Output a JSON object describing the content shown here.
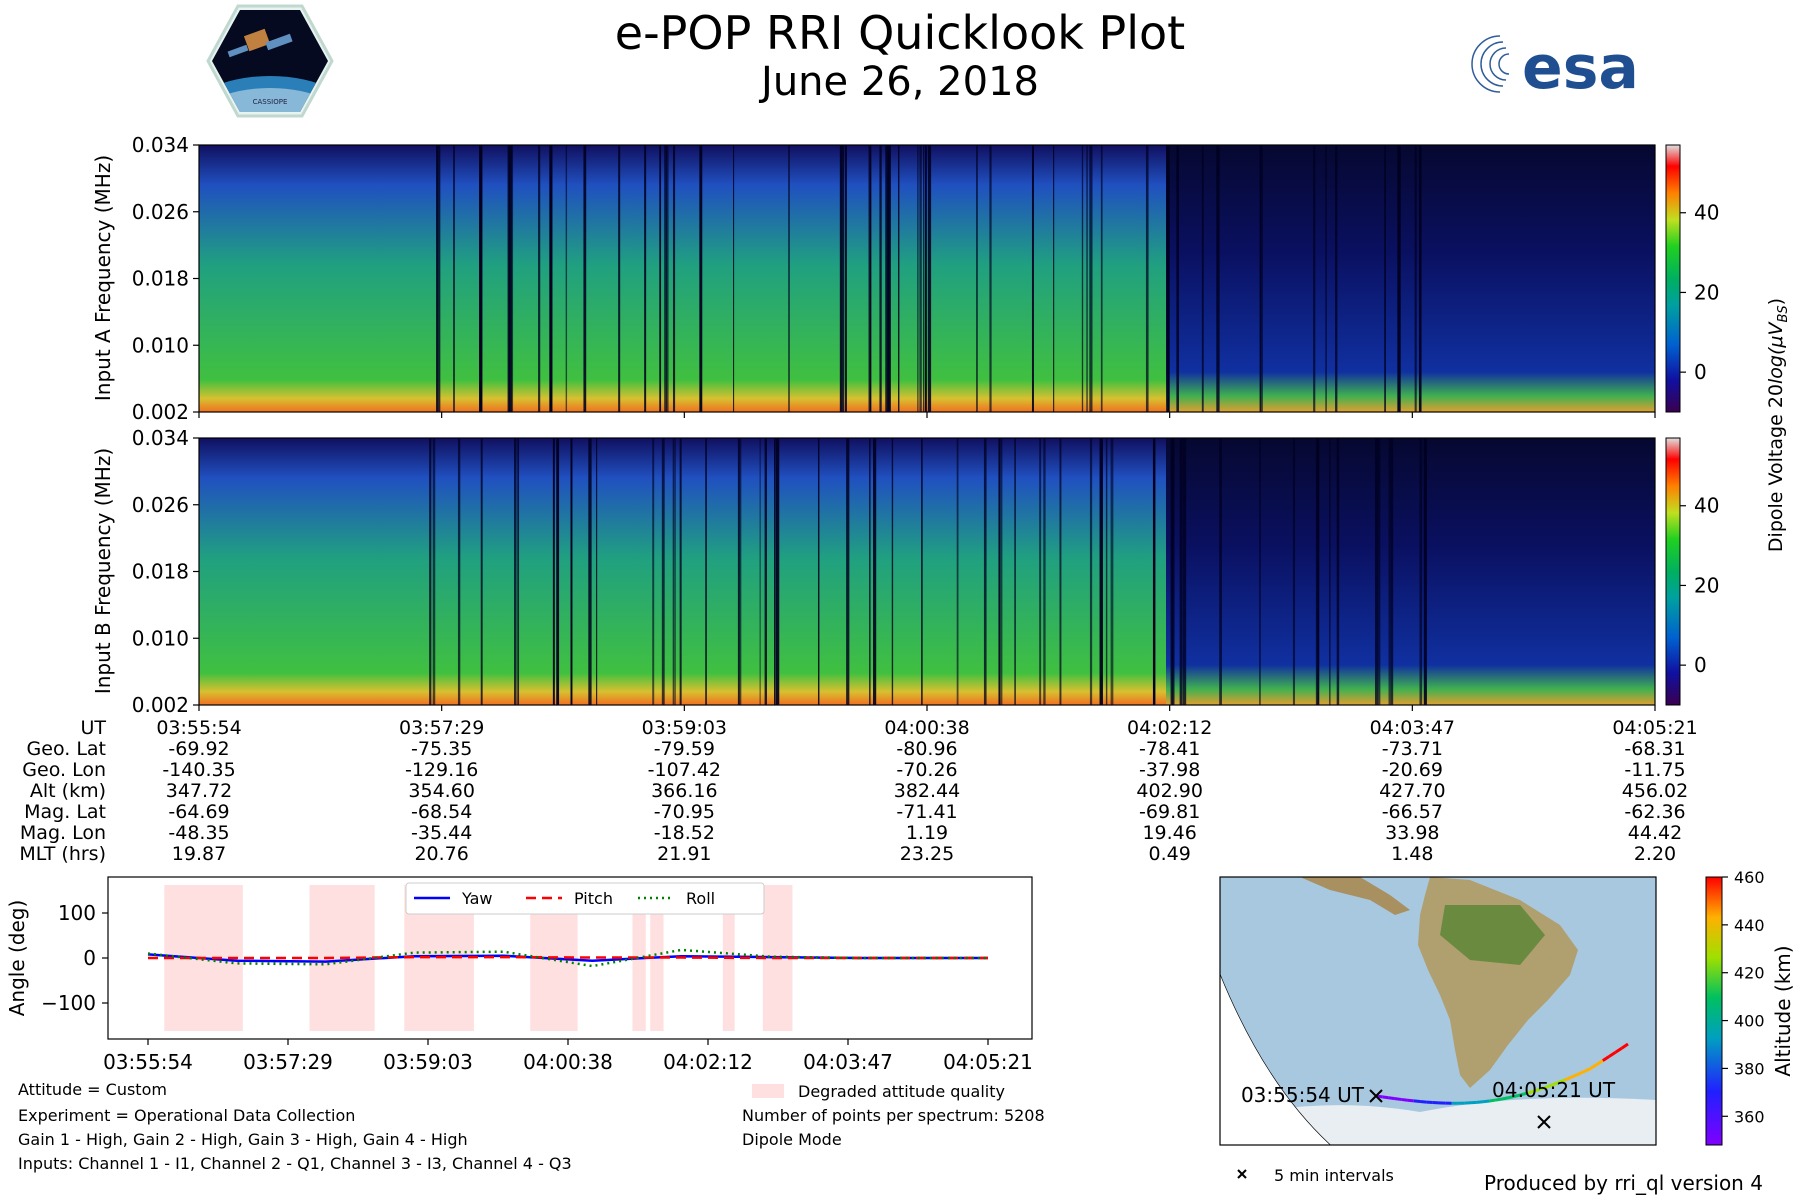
{
  "header": {
    "title": "e-POP RRI Quicklook Plot",
    "date": "June 26, 2018",
    "logo_left_text": "CASSIOPE",
    "logo_right_text": "esa"
  },
  "chart_data": [
    {
      "type": "heatmap",
      "name": "Input A spectrogram",
      "ylabel": "Input A Frequency (MHz)",
      "yticks": [
        "0.002",
        "0.010",
        "0.018",
        "0.026",
        "0.034"
      ],
      "ylim": [
        0.002,
        0.034
      ],
      "xlim": [
        "03:55:54",
        "04:05:21"
      ],
      "description": "Dynamic spectrum, strongest emission near 0.004 MHz; quiet (dark) region after 04:02:12"
    },
    {
      "type": "heatmap",
      "name": "Input B spectrogram",
      "ylabel": "Input B Frequency (MHz)",
      "yticks": [
        "0.002",
        "0.010",
        "0.018",
        "0.026",
        "0.034"
      ],
      "ylim": [
        0.002,
        0.034
      ],
      "xlim": [
        "03:55:54",
        "04:05:21"
      ]
    },
    {
      "type": "table",
      "name": "Ephemeris",
      "row_labels": [
        "UT",
        "Geo. Lat",
        "Geo. Lon",
        "Alt (km)",
        "Mag. Lat",
        "Mag. Lon",
        "MLT (hrs)"
      ],
      "columns": [
        [
          "03:55:54",
          "-69.92",
          "-140.35",
          "347.72",
          "-64.69",
          "-48.35",
          "19.87"
        ],
        [
          "03:57:29",
          "-75.35",
          "-129.16",
          "354.60",
          "-68.54",
          "-35.44",
          "20.76"
        ],
        [
          "03:59:03",
          "-79.59",
          "-107.42",
          "366.16",
          "-70.95",
          "-18.52",
          "21.91"
        ],
        [
          "04:00:38",
          "-80.96",
          "-70.26",
          "382.44",
          "-71.41",
          "1.19",
          "23.25"
        ],
        [
          "04:02:12",
          "-78.41",
          "-37.98",
          "402.90",
          "-69.81",
          "19.46",
          "0.49"
        ],
        [
          "04:03:47",
          "-73.71",
          "-20.69",
          "427.70",
          "-66.57",
          "33.98",
          "1.48"
        ],
        [
          "04:05:21",
          "-68.31",
          "-11.75",
          "456.02",
          "-62.36",
          "44.42",
          "2.20"
        ]
      ]
    },
    {
      "type": "line",
      "name": "Attitude",
      "ylabel": "Angle (deg)",
      "yticks": [
        "100",
        "0",
        "−100"
      ],
      "ylim": [
        -180,
        180
      ],
      "xticks": [
        "03:55:54",
        "03:57:29",
        "03:59:03",
        "04:00:38",
        "04:02:12",
        "04:03:47",
        "04:05:21"
      ],
      "xlim_seconds": [
        0,
        567
      ],
      "legend": {
        "placement": "top-center"
      },
      "series": [
        {
          "name": "Yaw",
          "color": "#0000ff",
          "style": "solid",
          "x": [
            0,
            60,
            120,
            180,
            240,
            300,
            360,
            420,
            480,
            567
          ],
          "values": [
            8,
            -6,
            -8,
            4,
            5,
            -6,
            4,
            2,
            0,
            0
          ]
        },
        {
          "name": "Pitch",
          "color": "#ff0000",
          "style": "dashed",
          "x": [
            0,
            60,
            120,
            180,
            240,
            300,
            360,
            420,
            480,
            567
          ],
          "values": [
            0,
            0,
            0,
            2,
            2,
            1,
            1,
            0,
            0,
            0
          ]
        },
        {
          "name": "Roll",
          "color": "#008000",
          "style": "dotted",
          "x": [
            0,
            60,
            120,
            180,
            240,
            300,
            360,
            420,
            480,
            567
          ],
          "values": [
            10,
            -12,
            -14,
            12,
            14,
            -18,
            18,
            3,
            0,
            0
          ]
        }
      ],
      "shaded_regions_seconds": [
        [
          11,
          64
        ],
        [
          109,
          153
        ],
        [
          173,
          220
        ],
        [
          258,
          290
        ],
        [
          327,
          336
        ],
        [
          339,
          348
        ],
        [
          388,
          396
        ],
        [
          415,
          435
        ]
      ],
      "shaded_label": "Degraded attitude quality"
    },
    {
      "type": "scatter",
      "name": "Orbit track map",
      "colorbar_label": "Altitude (km)",
      "colorbar_ticks": [
        "460",
        "440",
        "420",
        "400",
        "380",
        "360"
      ],
      "colorbar_range": [
        348,
        460
      ],
      "start_label": "03:55:54 UT",
      "end_label": "04:05:21 UT",
      "marker_legend": "5 min intervals"
    }
  ],
  "colorbar_main": {
    "label": "Dipole Voltage 20log(μV_BS)",
    "label_main": "Dipole Voltage 20",
    "label_log": "log(",
    "label_mu": "μ",
    "label_v": "V",
    "label_sub": "BS",
    "label_close": ")",
    "ticks": [
      "40",
      "20",
      "0"
    ],
    "range": [
      -10,
      57
    ]
  },
  "info_left": [
    "Attitude = Custom",
    "Experiment = Operational Data Collection",
    "Gain 1 - High, Gain 2 - High, Gain 3 - High, Gain 4 - High",
    "Inputs: Channel 1 - I1, Channel 2 - Q1, Channel 3 - I3, Channel 4 - Q3"
  ],
  "info_right": {
    "legend_label": "Degraded attitude quality",
    "points": "Number of points per spectrum: 5208",
    "mode": "Dipole Mode"
  },
  "footer": {
    "marker_legend": "5 min intervals",
    "credit": "Produced by rri_ql version 4"
  },
  "colors": {
    "shade": "#ffe0e0",
    "yaw": "#0000ff",
    "pitch": "#ff0000",
    "roll": "#008000",
    "ocean": "#a8c8e0",
    "land": "#b8a070"
  }
}
